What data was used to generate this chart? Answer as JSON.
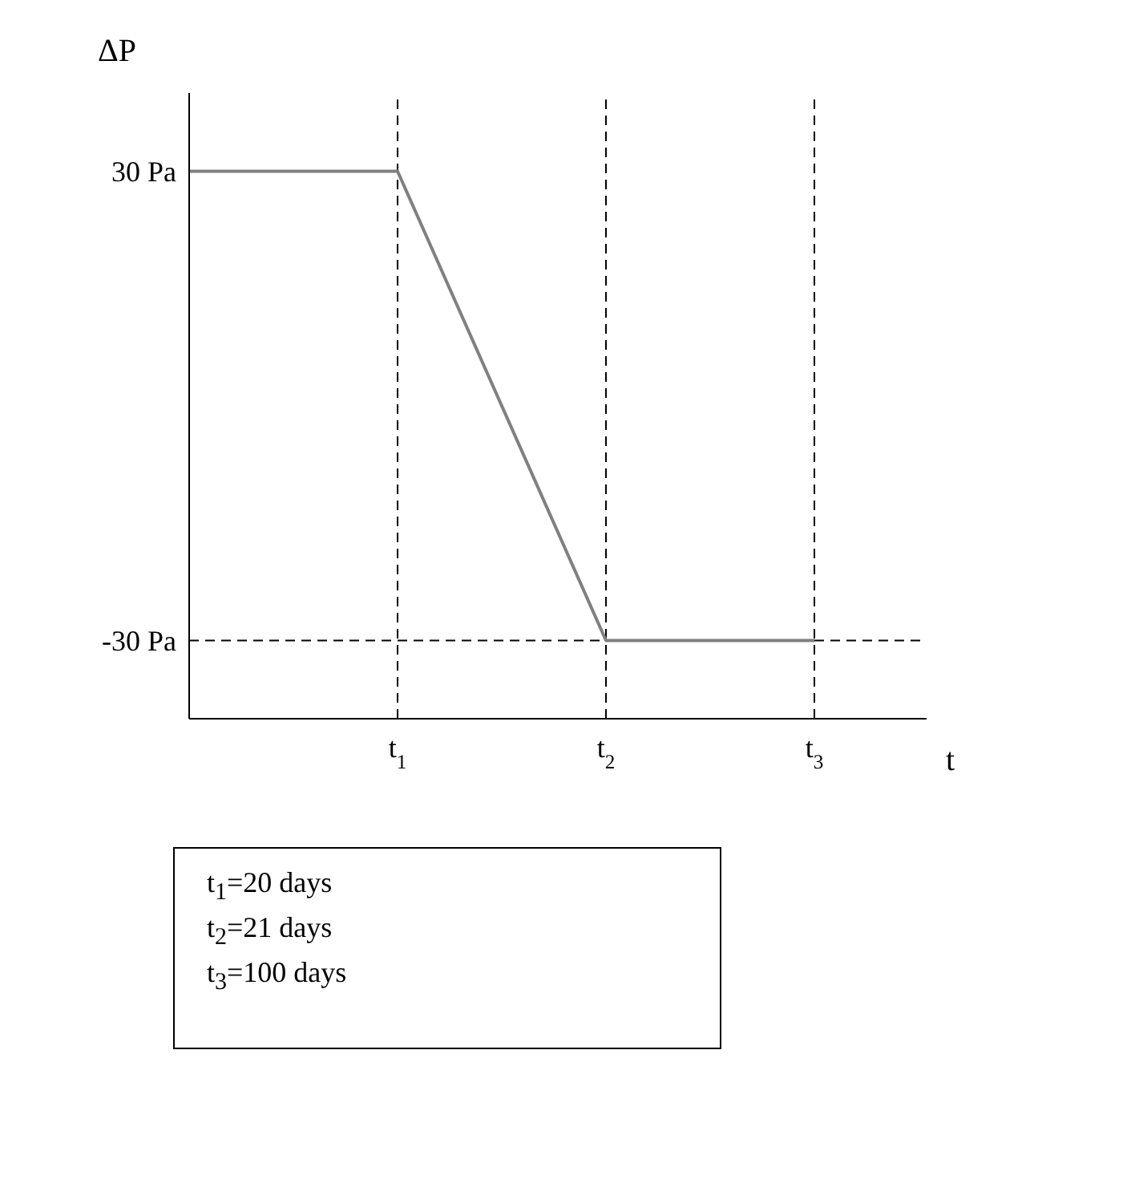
{
  "chart_data": {
    "type": "line",
    "ylabel": "ΔP",
    "xlabel": "t",
    "categories": [
      null,
      "t$_{1}$",
      "t$_{2}$",
      "t$_{3}$"
    ],
    "series": [
      {
        "color": "#808080",
        "values": [
          30,
          30,
          -30,
          -30
        ]
      }
    ],
    "ylim": [
      -40,
      40
    ],
    "yticks": [
      {
        "value": 30,
        "label": "30 Pa"
      },
      {
        "value": -30,
        "label": "-30 Pa"
      }
    ],
    "grid": false,
    "legend": false,
    "marker": "none",
    "line_style": "solid",
    "ref_lines": [
      {
        "axis": "x",
        "value": "t$_{1}$",
        "line_style": "dashed",
        "color": "#000000"
      },
      {
        "axis": "x",
        "value": "t$_{2}$",
        "line_style": "dashed",
        "color": "#000000"
      },
      {
        "axis": "x",
        "value": "t$_{3}$",
        "line_style": "dashed",
        "color": "#000000"
      },
      {
        "axis": "y",
        "value": -30,
        "line_style": "dashed",
        "color": "#000000"
      }
    ],
    "annotations": [
      "t$_{1}$=20 days",
      "t$_{2}$=21 days",
      "t$_{3}$=100 days"
    ]
  }
}
